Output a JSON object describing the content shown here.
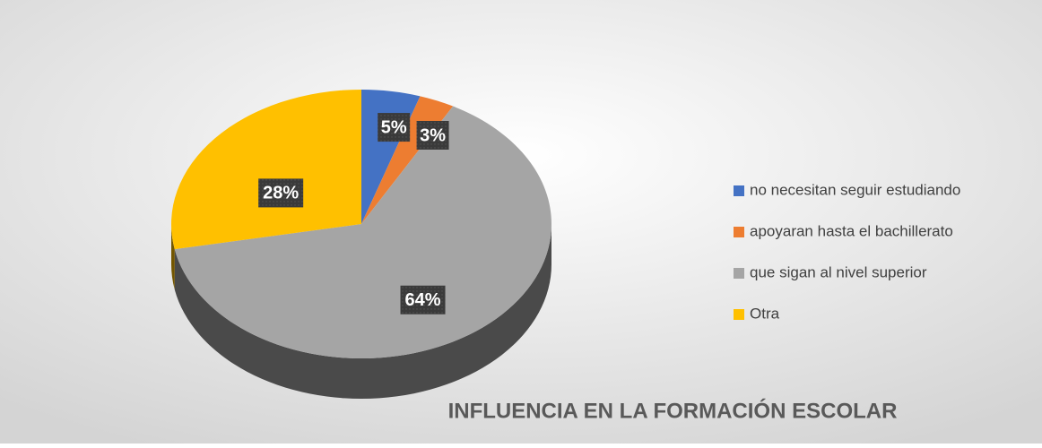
{
  "chart_data": {
    "type": "pie",
    "title": "INFLUENCIA EN LA FORMACIÓN ESCOLAR",
    "categories": [
      "no necesitan seguir estudiando",
      "apoyaran hasta el bachillerato",
      "que sigan al nivel superior",
      "Otra"
    ],
    "values": [
      5,
      3,
      64,
      28
    ],
    "value_labels": [
      "5%",
      "3%",
      "64%",
      "28%"
    ],
    "colors": [
      "#4472c4",
      "#ed7d31",
      "#a5a5a5",
      "#ffc000"
    ],
    "legend": "right"
  }
}
